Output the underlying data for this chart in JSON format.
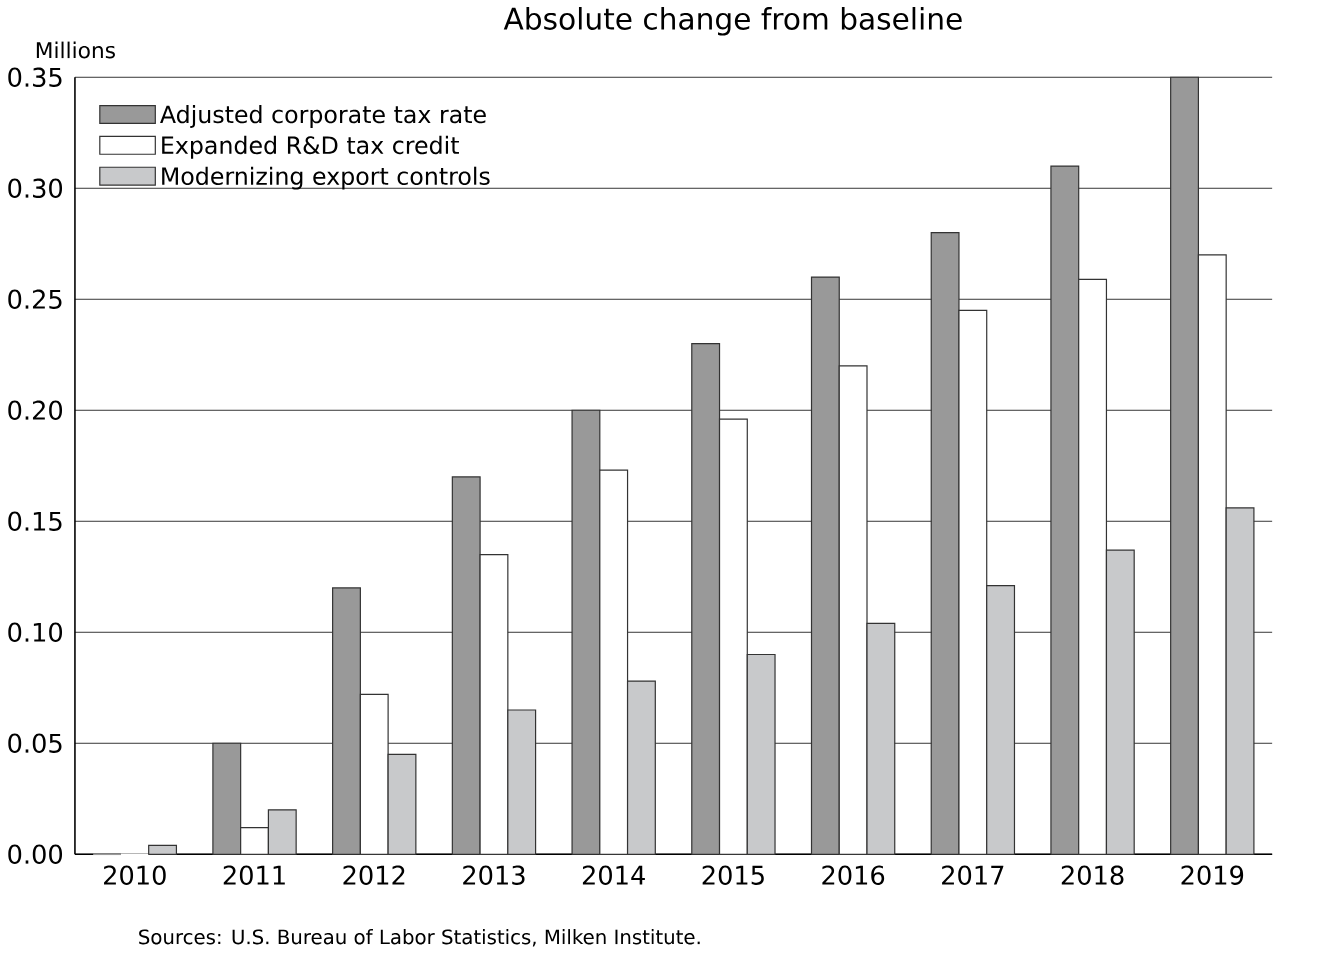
{
  "chart_data": {
    "type": "bar",
    "title": "Absolute change from baseline",
    "ylabel": "Millions",
    "categories": [
      "2010",
      "2011",
      "2012",
      "2013",
      "2014",
      "2015",
      "2016",
      "2017",
      "2018",
      "2019"
    ],
    "series": [
      {
        "name": "Adjusted corporate tax rate",
        "color": "#999999",
        "values": [
          0,
          0.05,
          0.12,
          0.17,
          0.2,
          0.23,
          0.26,
          0.28,
          0.31,
          0.35
        ]
      },
      {
        "name": "Expanded R&D tax credit",
        "color": "#ffffff",
        "values": [
          0,
          0.012,
          0.072,
          0.135,
          0.173,
          0.196,
          0.22,
          0.245,
          0.259,
          0.27
        ]
      },
      {
        "name": "Modernizing export controls",
        "color": "#c8c9cb",
        "values": [
          0.004,
          0.02,
          0.045,
          0.065,
          0.078,
          0.09,
          0.104,
          0.121,
          0.137,
          0.156
        ]
      }
    ],
    "ylim": [
      0,
      0.35
    ],
    "yticks": [
      {
        "value": 0,
        "label": "0.00"
      },
      {
        "value": 0.05,
        "label": "0.05"
      },
      {
        "value": 0.1,
        "label": "0.10"
      },
      {
        "value": 0.15,
        "label": "0.15"
      },
      {
        "value": 0.2,
        "label": "0.20"
      },
      {
        "value": 0.25,
        "label": "0.25"
      },
      {
        "value": 0.3,
        "label": "0.30"
      },
      {
        "value": 0.35,
        "label": "0.35"
      }
    ],
    "grid": "y",
    "legend": "top left",
    "annotations": [
      "Sources: U.S. Bureau of Labor Statistics, Milken Institute."
    ]
  }
}
